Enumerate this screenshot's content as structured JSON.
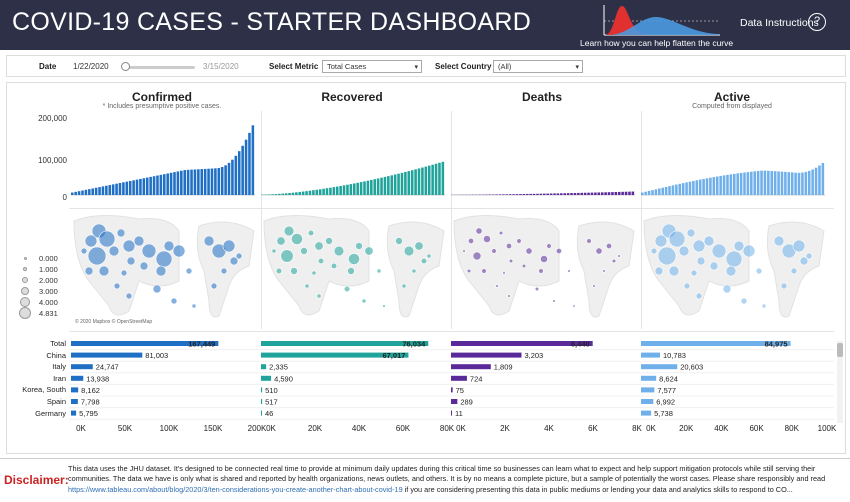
{
  "header": {
    "title": "COVID-19 CASES - STARTER DASHBOARD",
    "curve_link": "Learn how you can help flatten the curve",
    "data_instructions": "Data Instructions",
    "help_icon": "?"
  },
  "filters": {
    "date_label": "Date",
    "date_start": "1/22/2020",
    "date_end": "3/15/2020",
    "date_slider_fraction": 0.0,
    "metric_label": "Select Metric",
    "metric_value": "Total Cases",
    "country_label": "Select Country",
    "country_value": "(All)"
  },
  "colors": {
    "confirmed": "#1f6fc5",
    "recovered": "#1fa39a",
    "deaths": "#5b2a9a",
    "active": "#6fb0ea",
    "header_bg": "#2e3047",
    "disclaimer": "#cc2222"
  },
  "columns": [
    {
      "key": "confirmed",
      "title": "Confirmed",
      "subtitle": "* Includes presumptive positive cases."
    },
    {
      "key": "recovered",
      "title": "Recovered",
      "subtitle": ""
    },
    {
      "key": "deaths",
      "title": "Deaths",
      "subtitle": ""
    },
    {
      "key": "active",
      "title": "Active",
      "subtitle": "Computed from displayed"
    }
  ],
  "timeline": {
    "y_ticks": [
      "200,000",
      "100,000",
      "0"
    ],
    "y_max": 200000
  },
  "map_legend": {
    "items": [
      "0.000",
      "1.000",
      "2.000",
      "3.000",
      "4.000",
      "4.831"
    ],
    "credit": "© 2020 Mapbox © OpenStreetMap"
  },
  "table": {
    "rows": [
      {
        "label": "Total",
        "confirmed": 167449,
        "confirmed_label": "167,449",
        "recovered": 76034,
        "recovered_label": "76,034",
        "deaths": 6440,
        "deaths_label": "6,440",
        "active": 84975,
        "active_label": "84,975"
      },
      {
        "label": "China",
        "confirmed": 81003,
        "confirmed_label": "81,003",
        "recovered": 67017,
        "recovered_label": "67,017",
        "deaths": 3203,
        "deaths_label": "3,203",
        "active": 10783,
        "active_label": "10,783"
      },
      {
        "label": "Italy",
        "confirmed": 24747,
        "confirmed_label": "24,747",
        "recovered": 2335,
        "recovered_label": "2,335",
        "deaths": 1809,
        "deaths_label": "1,809",
        "active": 20603,
        "active_label": "20,603"
      },
      {
        "label": "Iran",
        "confirmed": 13938,
        "confirmed_label": "13,938",
        "recovered": 4590,
        "recovered_label": "4,590",
        "deaths": 724,
        "deaths_label": "724",
        "active": 8624,
        "active_label": "8,624"
      },
      {
        "label": "Korea, South",
        "confirmed": 8162,
        "confirmed_label": "8,162",
        "recovered": 510,
        "recovered_label": "510",
        "deaths": 75,
        "deaths_label": "75",
        "active": 7577,
        "active_label": "7,577"
      },
      {
        "label": "Spain",
        "confirmed": 7798,
        "confirmed_label": "7,798",
        "recovered": 517,
        "recovered_label": "517",
        "deaths": 289,
        "deaths_label": "289",
        "active": 6992,
        "active_label": "6,992"
      },
      {
        "label": "Germany",
        "confirmed": 5795,
        "confirmed_label": "5,795",
        "recovered": 46,
        "recovered_label": "46",
        "deaths": 11,
        "deaths_label": "11",
        "active": 5738,
        "active_label": "5,738"
      }
    ],
    "axes": {
      "confirmed": {
        "max": 200000,
        "ticks": [
          "0K",
          "50K",
          "100K",
          "150K",
          "200K"
        ]
      },
      "recovered": {
        "max": 80000,
        "ticks": [
          "0K",
          "20K",
          "40K",
          "60K",
          "80K"
        ]
      },
      "deaths": {
        "max": 8000,
        "ticks": [
          "0K",
          "2K",
          "4K",
          "6K",
          "8K"
        ]
      },
      "active": {
        "max": 100000,
        "ticks": [
          "0K",
          "20K",
          "40K",
          "60K",
          "80K",
          "100K"
        ]
      }
    }
  },
  "footer": {
    "disclaimer_label": "Disclaimer:",
    "text_1": "This data uses the JHU dataset. It's designed to be connected real time to provide at minimum daily updates during this critical time so businesses can learn what to expect and help support mitigation protocols while still serving their communities. The data we have is only what is shared and reported by health organizations, news outlets, and others. It is by no means a complete picture, but a sample of potentially the worst cases. Please share responsibly and read",
    "link": "https://www.tableau.com/about/blog/2020/3/ten-considerations-you-create-another-chart-about-covid-19",
    "text_2": "if you are considering presenting this data in public mediums or lending your data and analytics skills to respond to CO..."
  }
}
